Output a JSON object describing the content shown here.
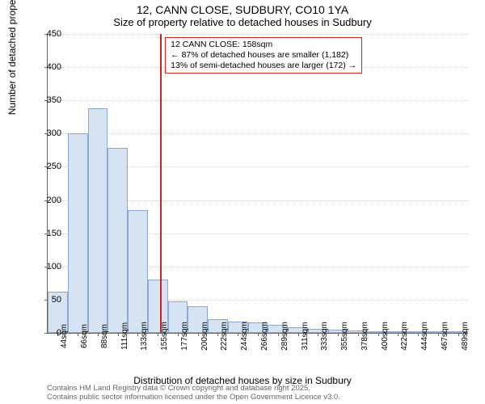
{
  "title": "12, CANN CLOSE, SUDBURY, CO10 1YA",
  "subtitle": "Size of property relative to detached houses in Sudbury",
  "y_label": "Number of detached properties",
  "x_label": "Distribution of detached houses by size in Sudbury",
  "footer_line1": "Contains HM Land Registry data © Crown copyright and database right 2025.",
  "footer_line2": "Contains public sector information licensed under the Open Government Licence v3.0.",
  "annotation": {
    "line1": "12 CANN CLOSE: 158sqm",
    "line2": "← 87% of detached houses are smaller (1,182)",
    "line3": "13% of semi-detached houses are larger (172) →"
  },
  "chart": {
    "type": "histogram",
    "ylim": [
      0,
      450
    ],
    "ytick_step": 50,
    "bar_fill": "#d6e3f3",
    "bar_stroke": "#8aa8d0",
    "grid_color": "#c8c8c8",
    "marker_color": "#cc2222",
    "annotation_border": "#cc2222",
    "background": "#ffffff",
    "title_fontsize": 14,
    "subtitle_fontsize": 13,
    "label_fontsize": 12,
    "tick_fontsize": 11,
    "x_tick_fontsize": 10,
    "marker_x_value": 158,
    "x_range": [
      33,
      500
    ],
    "categories": [
      "44sqm",
      "66sqm",
      "88sqm",
      "111sqm",
      "133sqm",
      "155sqm",
      "177sqm",
      "200sqm",
      "222sqm",
      "244sqm",
      "266sqm",
      "289sqm",
      "311sqm",
      "333sqm",
      "355sqm",
      "378sqm",
      "400sqm",
      "422sqm",
      "444sqm",
      "467sqm",
      "489sqm"
    ],
    "values": [
      62,
      300,
      338,
      278,
      185,
      80,
      48,
      40,
      21,
      17,
      16,
      12,
      8,
      6,
      5,
      4,
      2,
      3,
      2,
      2,
      1
    ]
  }
}
